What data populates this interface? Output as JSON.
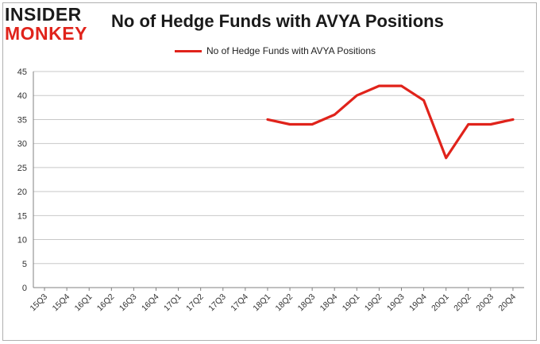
{
  "logo": {
    "line1": "INSIDER",
    "line2": "MONKEY"
  },
  "colors": {
    "series": "#e0231b",
    "grid": "#c8c8c8",
    "axis": "#808080",
    "frame": "#b0b0b0",
    "text": "#333333"
  },
  "chart_data": {
    "type": "line",
    "title": "No of Hedge Funds with AVYA Positions",
    "xlabel": "",
    "ylabel": "",
    "ylim": [
      0,
      45
    ],
    "yticks": [
      0,
      5,
      10,
      15,
      20,
      25,
      30,
      35,
      40,
      45
    ],
    "grid": true,
    "legend_position": "top-center",
    "categories": [
      "15Q3",
      "15Q4",
      "16Q1",
      "16Q2",
      "16Q3",
      "16Q4",
      "17Q1",
      "17Q2",
      "17Q3",
      "17Q4",
      "18Q1",
      "18Q2",
      "18Q3",
      "18Q4",
      "19Q1",
      "19Q2",
      "19Q3",
      "19Q4",
      "20Q1",
      "20Q2",
      "20Q3",
      "20Q4"
    ],
    "series": [
      {
        "name": "No of Hedge Funds with AVYA Positions",
        "values": [
          null,
          null,
          null,
          null,
          null,
          null,
          null,
          null,
          null,
          null,
          35,
          34,
          34,
          36,
          40,
          42,
          42,
          39,
          27,
          34,
          34,
          35
        ]
      }
    ]
  }
}
